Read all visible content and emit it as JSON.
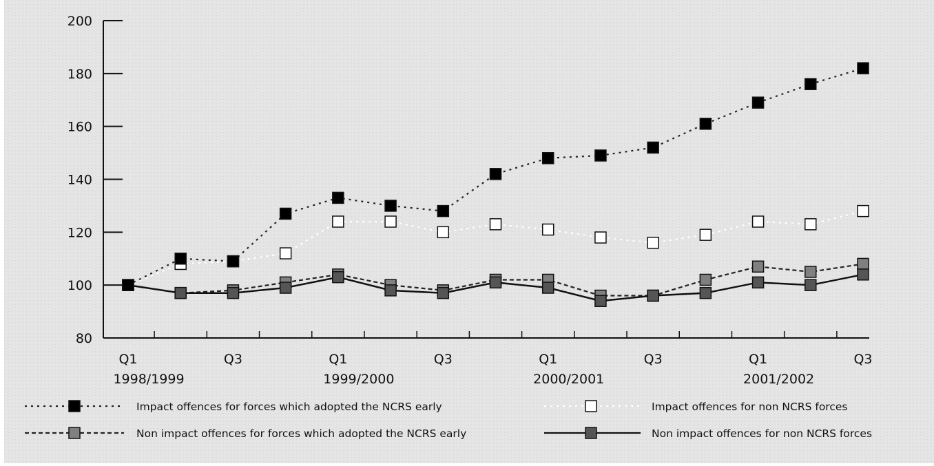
{
  "chart_data": {
    "type": "line",
    "title": "",
    "xlabel": "",
    "ylabel": "",
    "ylim": [
      80,
      200
    ],
    "yticks": [
      80,
      100,
      120,
      140,
      160,
      180,
      200
    ],
    "grid": false,
    "legend_position": "bottom",
    "x_labels": [
      {
        "quarter": "Q1",
        "year": "1998/1999",
        "index": 0
      },
      {
        "quarter": "Q3",
        "year": "",
        "index": 2
      },
      {
        "quarter": "Q1",
        "year": "1999/2000",
        "index": 4
      },
      {
        "quarter": "Q3",
        "year": "",
        "index": 6
      },
      {
        "quarter": "Q1",
        "year": "2000/2001",
        "index": 8
      },
      {
        "quarter": "Q3",
        "year": "",
        "index": 10
      },
      {
        "quarter": "Q1",
        "year": "2001/2002",
        "index": 12
      },
      {
        "quarter": "Q3",
        "year": "",
        "index": 14
      }
    ],
    "series": [
      {
        "name": "Impact offences for forces which adopted the NCRS early",
        "color": "#000000",
        "line_color": "#222222",
        "line_style": "dotted",
        "values": [
          100,
          110,
          109,
          127,
          133,
          130,
          128,
          142,
          148,
          149,
          152,
          161,
          169,
          176,
          182
        ]
      },
      {
        "name": "Impact offences for non NCRS forces",
        "color": "#ffffff",
        "line_color": "#ffffff",
        "line_style": "dotted",
        "values": [
          100,
          108,
          109,
          112,
          124,
          124,
          120,
          123,
          121,
          118,
          116,
          119,
          124,
          123,
          128
        ]
      },
      {
        "name": "Non impact offences for forces which adopted the NCRS early",
        "color": "#808080",
        "line_color": "#222222",
        "line_style": "dashed",
        "values": [
          100,
          97,
          98,
          101,
          104,
          100,
          98,
          102,
          102,
          96,
          96,
          102,
          107,
          105,
          108
        ]
      },
      {
        "name": "Non impact offences for non NCRS forces",
        "color": "#555555",
        "line_color": "#111111",
        "line_style": "solid",
        "values": [
          100,
          97,
          97,
          99,
          103,
          98,
          97,
          101,
          99,
          94,
          96,
          97,
          101,
          100,
          104
        ]
      }
    ],
    "background_color": "#e2e2e2"
  }
}
